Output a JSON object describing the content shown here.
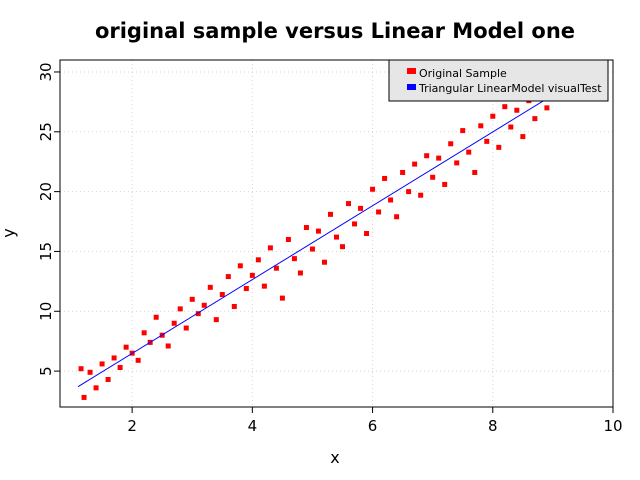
{
  "chart_data": {
    "type": "scatter",
    "title": "original sample versus Linear Model one",
    "xlabel": "x",
    "ylabel": "y",
    "xlim": [
      0.8,
      10.0
    ],
    "ylim": [
      2.0,
      31.0
    ],
    "x_ticks": [
      2,
      4,
      6,
      8,
      10
    ],
    "y_ticks": [
      5,
      10,
      15,
      20,
      25,
      30
    ],
    "grid": true,
    "legend_position": "top-right",
    "series": [
      {
        "name": "Original Sample",
        "kind": "points",
        "color": "#ff0000",
        "x_range": [
          1.1,
          9.3
        ],
        "points": [
          [
            1.15,
            5.2
          ],
          [
            1.2,
            2.8
          ],
          [
            1.3,
            4.9
          ],
          [
            1.4,
            3.6
          ],
          [
            1.5,
            5.6
          ],
          [
            1.6,
            4.3
          ],
          [
            1.7,
            6.1
          ],
          [
            1.8,
            5.3
          ],
          [
            1.9,
            7.0
          ],
          [
            2.0,
            6.5
          ],
          [
            2.1,
            5.9
          ],
          [
            2.2,
            8.2
          ],
          [
            2.3,
            7.4
          ],
          [
            2.4,
            9.5
          ],
          [
            2.5,
            8.0
          ],
          [
            2.6,
            7.1
          ],
          [
            2.7,
            9.0
          ],
          [
            2.8,
            10.2
          ],
          [
            2.9,
            8.6
          ],
          [
            3.0,
            11.0
          ],
          [
            3.1,
            9.8
          ],
          [
            3.2,
            10.5
          ],
          [
            3.3,
            12.0
          ],
          [
            3.4,
            9.3
          ],
          [
            3.5,
            11.4
          ],
          [
            3.6,
            12.9
          ],
          [
            3.7,
            10.4
          ],
          [
            3.8,
            13.8
          ],
          [
            3.9,
            11.9
          ],
          [
            4.0,
            13.0
          ],
          [
            4.1,
            14.3
          ],
          [
            4.2,
            12.1
          ],
          [
            4.3,
            15.3
          ],
          [
            4.4,
            13.6
          ],
          [
            4.5,
            11.1
          ],
          [
            4.6,
            16.0
          ],
          [
            4.7,
            14.4
          ],
          [
            4.8,
            13.2
          ],
          [
            4.9,
            17.0
          ],
          [
            5.0,
            15.2
          ],
          [
            5.1,
            16.7
          ],
          [
            5.2,
            14.1
          ],
          [
            5.3,
            18.1
          ],
          [
            5.4,
            16.2
          ],
          [
            5.5,
            15.4
          ],
          [
            5.6,
            19.0
          ],
          [
            5.7,
            17.3
          ],
          [
            5.8,
            18.6
          ],
          [
            5.9,
            16.5
          ],
          [
            6.0,
            20.2
          ],
          [
            6.1,
            18.3
          ],
          [
            6.2,
            21.1
          ],
          [
            6.3,
            19.3
          ],
          [
            6.4,
            17.9
          ],
          [
            6.5,
            21.6
          ],
          [
            6.6,
            20.0
          ],
          [
            6.7,
            22.3
          ],
          [
            6.8,
            19.7
          ],
          [
            6.9,
            23.0
          ],
          [
            7.0,
            21.2
          ],
          [
            7.1,
            22.8
          ],
          [
            7.2,
            20.6
          ],
          [
            7.3,
            24.0
          ],
          [
            7.4,
            22.4
          ],
          [
            7.5,
            25.1
          ],
          [
            7.6,
            23.3
          ],
          [
            7.7,
            21.6
          ],
          [
            7.8,
            25.5
          ],
          [
            7.9,
            24.2
          ],
          [
            8.0,
            26.3
          ],
          [
            8.1,
            23.7
          ],
          [
            8.2,
            27.1
          ],
          [
            8.3,
            25.4
          ],
          [
            8.4,
            26.8
          ],
          [
            8.5,
            24.6
          ],
          [
            8.6,
            27.6
          ],
          [
            8.7,
            26.1
          ],
          [
            8.8,
            28.5
          ],
          [
            8.9,
            27.0
          ],
          [
            9.0,
            29.1
          ],
          [
            9.1,
            27.9
          ],
          [
            9.2,
            28.6
          ],
          [
            9.3,
            29.0
          ]
        ]
      },
      {
        "name": "Triangular LinearModel visualTest",
        "kind": "line",
        "color": "#0000ff",
        "line": [
          [
            1.1,
            3.7
          ],
          [
            9.3,
            29.0
          ]
        ]
      }
    ]
  }
}
